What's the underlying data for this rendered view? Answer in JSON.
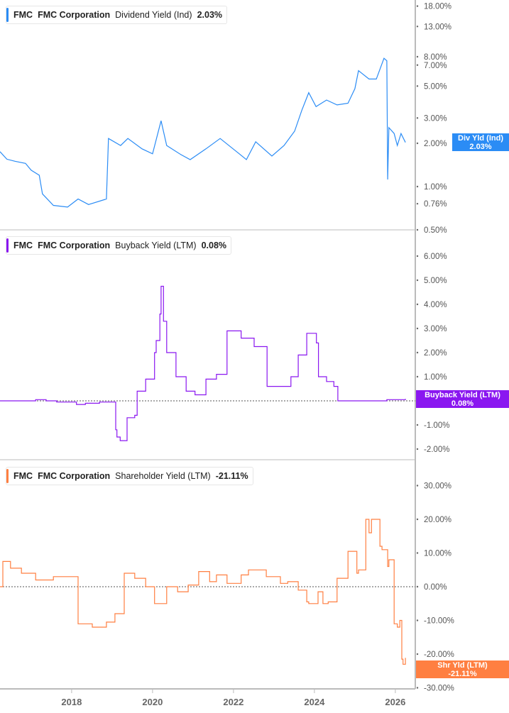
{
  "colors": {
    "dividend": "#2b8cf5",
    "buyback": "#8a17f0",
    "shareholder": "#ff7f41"
  },
  "chart_data": [
    {
      "type": "line",
      "ticker": "FMC",
      "company": "FMC Corporation",
      "metric": "Dividend Yield (Ind)",
      "last_value": "2.03%",
      "tag_label": "Div Yld (Ind)",
      "tag_value": "2.03%",
      "y_scale": "log",
      "y_ticks": [
        "18.00%",
        "13.00%",
        "8.00%",
        "7.00%",
        "5.00%",
        "3.00%",
        "2.00%",
        "1.00%",
        "0.76%",
        "0.50%"
      ],
      "y_tick_values": [
        18,
        13,
        8,
        7,
        5,
        3,
        2,
        1,
        0.76,
        0.5
      ],
      "x": [
        2016.23,
        2016.4,
        2016.6,
        2016.86,
        2017.0,
        2017.2,
        2017.28,
        2017.55,
        2017.9,
        2018.16,
        2018.42,
        2018.86,
        2018.91,
        2019.21,
        2019.39,
        2019.74,
        2020.0,
        2020.21,
        2020.35,
        2020.7,
        2020.93,
        2021.32,
        2021.67,
        2022.11,
        2022.32,
        2022.55,
        2022.95,
        2023.25,
        2023.51,
        2023.69,
        2023.86,
        2024.04,
        2024.3,
        2024.56,
        2024.83,
        2025.0,
        2025.09,
        2025.35,
        2025.53,
        2025.72,
        2025.79,
        2025.81,
        2025.84,
        2025.97,
        2026.05,
        2026.14,
        2026.25
      ],
      "y": [
        1.75,
        1.55,
        1.5,
        1.45,
        1.3,
        1.2,
        0.89,
        0.74,
        0.72,
        0.82,
        0.75,
        0.82,
        2.16,
        1.93,
        2.16,
        1.83,
        1.69,
        2.87,
        1.93,
        1.67,
        1.54,
        1.83,
        2.16,
        1.72,
        1.54,
        2.05,
        1.63,
        1.93,
        2.43,
        3.4,
        4.5,
        3.6,
        4.0,
        3.7,
        3.8,
        4.8,
        6.4,
        5.6,
        5.6,
        7.8,
        7.5,
        1.12,
        2.57,
        2.34,
        1.93,
        2.34,
        2.03
      ]
    },
    {
      "type": "line",
      "ticker": "FMC",
      "company": "FMC Corporation",
      "metric": "Buyback Yield (LTM)",
      "last_value": "0.08%",
      "tag_label": "Buyback Yield (LTM)",
      "tag_value": "0.08%",
      "y_scale": "linear",
      "zero_line": true,
      "y_ticks": [
        "6.00%",
        "5.00%",
        "4.00%",
        "3.00%",
        "2.00%",
        "1.00%",
        "-1.00%",
        "-2.00%"
      ],
      "y_tick_values": [
        6,
        5,
        4,
        3,
        2,
        1,
        -1,
        -2
      ],
      "x": [
        2016.23,
        2017.0,
        2017.11,
        2017.37,
        2017.63,
        2018.12,
        2018.34,
        2018.69,
        2019.09,
        2019.12,
        2019.2,
        2019.37,
        2019.56,
        2019.62,
        2019.83,
        2020.05,
        2020.09,
        2020.18,
        2020.21,
        2020.27,
        2020.35,
        2020.58,
        2020.83,
        2021.05,
        2021.32,
        2021.58,
        2021.84,
        2022.19,
        2022.51,
        2022.83,
        2023.25,
        2023.42,
        2023.6,
        2023.81,
        2024.05,
        2024.1,
        2024.3,
        2024.48,
        2024.58,
        2025.79,
        2026.25
      ],
      "y": [
        0.0,
        0.0,
        0.05,
        0.0,
        -0.05,
        -0.15,
        -0.1,
        -0.05,
        -1.2,
        -1.5,
        -1.65,
        -0.7,
        -0.6,
        0.4,
        0.9,
        2.0,
        2.5,
        3.6,
        4.75,
        3.3,
        2.0,
        1.0,
        0.4,
        0.25,
        0.9,
        1.1,
        2.9,
        2.6,
        2.25,
        0.6,
        0.6,
        1.0,
        1.9,
        2.8,
        2.4,
        1.0,
        0.8,
        0.6,
        0.0,
        0.05,
        0.08
      ]
    },
    {
      "type": "line",
      "ticker": "FMC",
      "company": "FMC Corporation",
      "metric": "Shareholder Yield (LTM)",
      "last_value": "-21.11%",
      "tag_label": "Shr Yld (LTM)",
      "tag_value": "-21.11%",
      "y_scale": "linear",
      "zero_line": true,
      "y_ticks": [
        "30.00%",
        "20.00%",
        "10.00%",
        "0.00%",
        "-10.00%",
        "-20.00%",
        "-30.00%"
      ],
      "y_tick_values": [
        30,
        20,
        10,
        0,
        -10,
        -20,
        -30
      ],
      "x": [
        2016.23,
        2016.3,
        2016.49,
        2016.76,
        2017.11,
        2017.55,
        2018.07,
        2018.16,
        2018.51,
        2018.86,
        2018.95,
        2019.07,
        2019.3,
        2019.56,
        2019.83,
        2020.05,
        2020.35,
        2020.62,
        2020.88,
        2021.14,
        2021.41,
        2021.58,
        2021.84,
        2022.19,
        2022.37,
        2022.81,
        2023.16,
        2023.34,
        2023.6,
        2023.81,
        2023.86,
        2024.09,
        2024.21,
        2024.34,
        2024.56,
        2024.83,
        2025.05,
        2025.09,
        2025.27,
        2025.35,
        2025.41,
        2025.62,
        2025.67,
        2025.81,
        2025.84,
        2025.97,
        2026.05,
        2026.11,
        2026.16,
        2026.19,
        2026.25
      ],
      "y": [
        0,
        7.5,
        5.5,
        4,
        2,
        3,
        3,
        -11,
        -12,
        -10.5,
        -10.5,
        -8,
        4,
        2.5,
        0,
        -5,
        0,
        -1.5,
        0.5,
        4.5,
        1.5,
        3.5,
        1,
        3.5,
        5,
        3,
        1,
        1.5,
        -1,
        -4.5,
        -5,
        -1.5,
        -5,
        -4.5,
        2.5,
        10.5,
        4,
        5,
        20,
        16,
        20,
        12,
        11,
        6,
        8,
        -11,
        -12,
        -10,
        -21.5,
        -23,
        -21.11
      ]
    }
  ],
  "x_axis": {
    "ticks": [
      "2018",
      "2020",
      "2022",
      "2024",
      "2026"
    ],
    "tick_values": [
      2018,
      2020,
      2022,
      2024,
      2026
    ]
  }
}
